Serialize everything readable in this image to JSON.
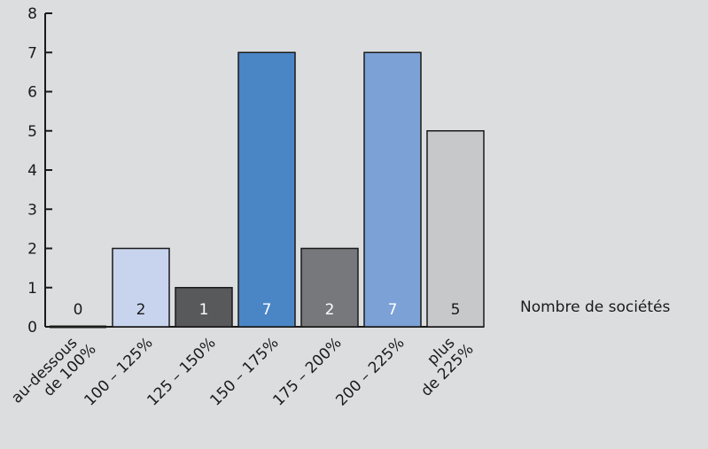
{
  "chart_data": {
    "type": "bar",
    "categories": [
      [
        "au-dessous",
        "de 100%"
      ],
      [
        "100 – 125%"
      ],
      [
        "125 – 150%"
      ],
      [
        "150 – 175%"
      ],
      [
        "175 – 200%"
      ],
      [
        "200 – 225%"
      ],
      [
        "plus",
        "de 225%"
      ]
    ],
    "values": [
      0,
      2,
      1,
      7,
      2,
      7,
      5
    ],
    "data_labels": [
      "0",
      "2",
      "1",
      "7",
      "2",
      "7",
      "5"
    ],
    "bar_colors": [
      "#1a1a1a",
      "#c8d4ee",
      "#58595b",
      "#4a86c6",
      "#77787b",
      "#7ba1d6",
      "#c7c8ca"
    ],
    "label_colors": [
      "#1a1a1a",
      "#1a1a1a",
      "#ffffff",
      "#ffffff",
      "#ffffff",
      "#ffffff",
      "#1a1a1a"
    ],
    "y_ticks": [
      "0",
      "1",
      "2",
      "3",
      "4",
      "5",
      "6",
      "7",
      "8"
    ],
    "ylim": [
      0,
      8
    ],
    "legend_note": "Nombre de sociétés",
    "grid": false
  }
}
